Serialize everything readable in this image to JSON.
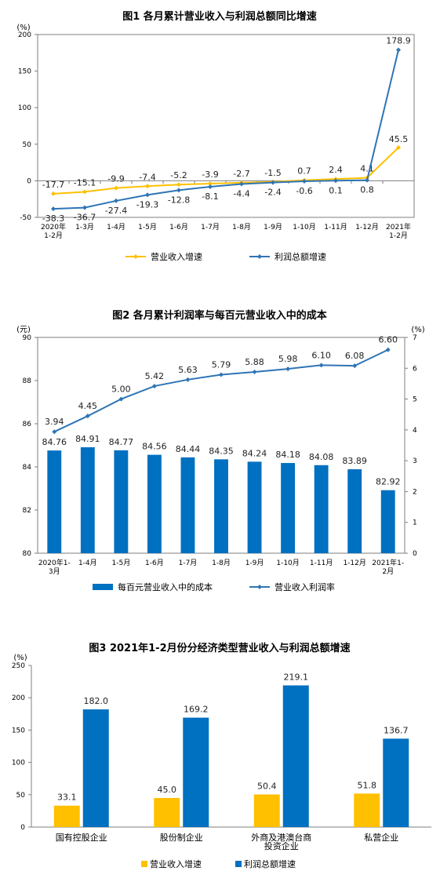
{
  "chart_data": [
    {
      "type": "line",
      "title": "图1  各月累计营业收入与利润总额同比增速",
      "unit": "(%)",
      "ylim": [
        -50,
        200
      ],
      "yticks": [
        "200",
        "150",
        "100",
        "50",
        "0",
        "-50"
      ],
      "categories": [
        "2020年\n1-2月",
        "1-3月",
        "1-4月",
        "1-5月",
        "1-6月",
        "1-7月",
        "1-8月",
        "1-9月",
        "1-10月",
        "1-11月",
        "1-12月",
        "2021年\n1-2月"
      ],
      "series": [
        {
          "name": "营业收入增速",
          "color": "#FFC000",
          "values": [
            -17.7,
            -15.1,
            -9.9,
            -7.4,
            -5.2,
            -3.9,
            -2.7,
            -1.5,
            0.7,
            2.4,
            4.1,
            45.5
          ]
        },
        {
          "name": "利润总额增速",
          "color": "#2E75B6",
          "values": [
            -38.3,
            -36.7,
            -27.4,
            -19.3,
            -12.8,
            -8.1,
            -4.4,
            -2.4,
            -0.6,
            0.1,
            0.8,
            178.9
          ]
        }
      ],
      "legend": "bottom"
    },
    {
      "type": "bar",
      "title": "图2  各月累计利润率与每百元营业收入中的成本",
      "unit_left": "(元)",
      "unit_right": "(%)",
      "ylim_left": [
        80,
        90
      ],
      "yticks_left": [
        "90",
        "88",
        "86",
        "84",
        "82",
        "80"
      ],
      "ylim_right": [
        0,
        7
      ],
      "yticks_right": [
        "7",
        "6",
        "5",
        "4",
        "3",
        "2",
        "1",
        "0"
      ],
      "categories": [
        "2020年1-\n3月",
        "1-4月",
        "1-5月",
        "1-6月",
        "1-7月",
        "1-8月",
        "1-9月",
        "1-10月",
        "1-11月",
        "1-12月",
        "2021年1-\n2月"
      ],
      "series": [
        {
          "name": "每百元营业收入中的成本",
          "kind": "bar",
          "axis": "left",
          "color": "#0070C0",
          "values": [
            84.76,
            84.91,
            84.77,
            84.56,
            84.44,
            84.35,
            84.24,
            84.18,
            84.08,
            83.89,
            82.92
          ]
        },
        {
          "name": "营业收入利润率",
          "kind": "line",
          "axis": "right",
          "color": "#2E75B6",
          "values": [
            3.94,
            4.45,
            5.0,
            5.42,
            5.63,
            5.79,
            5.88,
            5.98,
            6.1,
            6.08,
            6.6
          ]
        }
      ],
      "legend": "bottom"
    },
    {
      "type": "bar",
      "title": "图3  2021年1-2月份分经济类型营业收入与利润总额增速",
      "unit": "(%)",
      "ylim": [
        0,
        250
      ],
      "yticks": [
        "250",
        "200",
        "150",
        "100",
        "50",
        "0"
      ],
      "categories": [
        "国有控股企业",
        "股份制企业",
        "外商及港澳台商\n投资企业",
        "私营企业"
      ],
      "series": [
        {
          "name": "营业收入增速",
          "color": "#FFC000",
          "values": [
            33.1,
            45.0,
            50.4,
            51.8
          ]
        },
        {
          "name": "利润总额增速",
          "color": "#0070C0",
          "values": [
            182.0,
            169.2,
            219.1,
            136.7
          ]
        }
      ],
      "legend": "bottom"
    }
  ]
}
